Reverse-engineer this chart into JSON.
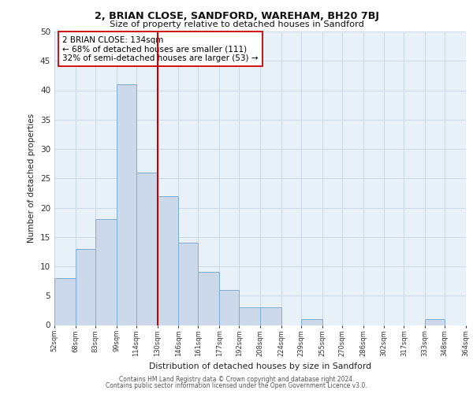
{
  "title1": "2, BRIAN CLOSE, SANDFORD, WAREHAM, BH20 7BJ",
  "title2": "Size of property relative to detached houses in Sandford",
  "xlabel": "Distribution of detached houses by size in Sandford",
  "ylabel": "Number of detached properties",
  "bar_edges": [
    52,
    68,
    83,
    99,
    114,
    130,
    146,
    161,
    177,
    192,
    208,
    224,
    239,
    255,
    270,
    286,
    302,
    317,
    333,
    348,
    364
  ],
  "bar_heights": [
    8,
    13,
    18,
    41,
    26,
    22,
    14,
    9,
    6,
    3,
    3,
    0,
    1,
    0,
    0,
    0,
    0,
    0,
    1,
    0,
    0
  ],
  "bar_color": "#ccd9ea",
  "bar_edgecolor": "#7aadd4",
  "vline_x": 130,
  "vline_color": "#cc0000",
  "annotation_line1": "2 BRIAN CLOSE: 134sqm",
  "annotation_line2": "← 68% of detached houses are smaller (111)",
  "annotation_line3": "32% of semi-detached houses are larger (53) →",
  "annotation_box_color": "#ffffff",
  "annotation_box_edgecolor": "#cc0000",
  "ylim": [
    0,
    50
  ],
  "yticks": [
    0,
    5,
    10,
    15,
    20,
    25,
    30,
    35,
    40,
    45,
    50
  ],
  "xtick_labels": [
    "52sqm",
    "68sqm",
    "83sqm",
    "99sqm",
    "114sqm",
    "130sqm",
    "146sqm",
    "161sqm",
    "177sqm",
    "192sqm",
    "208sqm",
    "224sqm",
    "239sqm",
    "255sqm",
    "270sqm",
    "286sqm",
    "302sqm",
    "317sqm",
    "333sqm",
    "348sqm",
    "364sqm"
  ],
  "grid_color": "#c8d8e8",
  "background_color": "#e8f0f8",
  "footer1": "Contains HM Land Registry data © Crown copyright and database right 2024.",
  "footer2": "Contains public sector information licensed under the Open Government Licence v3.0."
}
